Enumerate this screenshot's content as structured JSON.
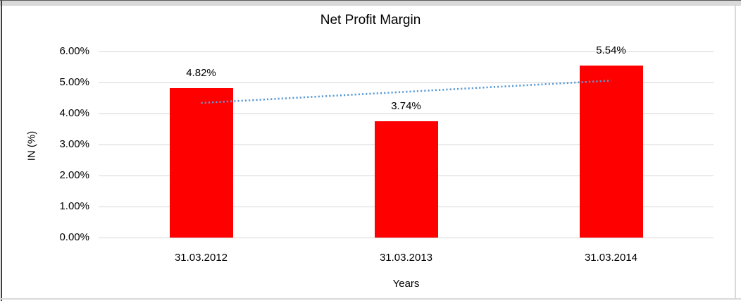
{
  "frame": {
    "background": "#ffffff",
    "top_strip_color": "#d9d9d9",
    "dark_border_color": "#3f3f3f",
    "light_border_color": "#d9d9d9"
  },
  "chart_data": {
    "type": "bar",
    "title": "Net Profit Margin",
    "categories": [
      "31.03.2012",
      "31.03.2013",
      "31.03.2014"
    ],
    "series": [
      {
        "name": "Net Profit Margin",
        "values": [
          4.82,
          3.74,
          5.54
        ]
      }
    ],
    "data_labels": [
      "4.82%",
      "3.74%",
      "5.54%"
    ],
    "xlabel": "Years",
    "ylabel": "IN (%)",
    "ylim": [
      0,
      6
    ],
    "ytick_step": 1,
    "ytick_labels": [
      "0.00%",
      "1.00%",
      "2.00%",
      "3.00%",
      "4.00%",
      "5.00%",
      "6.00%"
    ],
    "grid": true,
    "legend": "none",
    "bar_color": "#ff0000",
    "grid_color": "#d6d6d6",
    "text_color": "#000000",
    "trendline": {
      "type": "linear",
      "style": "dotted",
      "color": "#5b9bd5",
      "fitted_values": [
        4.34,
        4.7,
        5.06
      ]
    }
  }
}
